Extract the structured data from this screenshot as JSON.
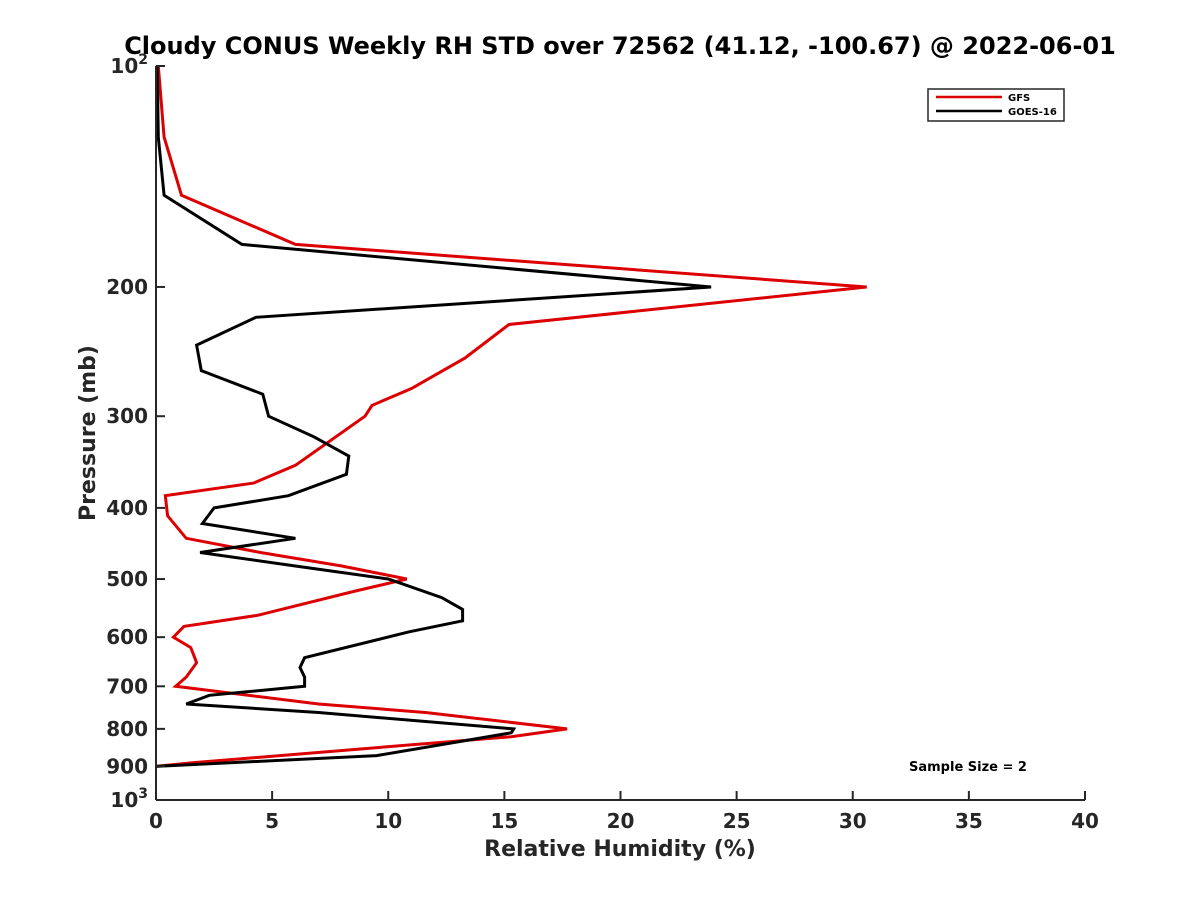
{
  "chart_data": {
    "type": "line",
    "title": "Cloudy CONUS Weekly RH STD over 72562 (41.12, -100.67) @ 2022-06-01",
    "xlabel": "Relative Humidity (%)",
    "ylabel": "Pressure (mb)",
    "xlim": [
      0,
      40
    ],
    "ylim": [
      100,
      1000
    ],
    "y_scale": "log",
    "y_reversed": true,
    "grid": false,
    "legend_position": "top-right",
    "x_ticks": [
      0,
      5,
      10,
      15,
      20,
      25,
      30,
      35,
      40
    ],
    "x_tick_labels": [
      "0",
      "5",
      "10",
      "15",
      "20",
      "25",
      "30",
      "35",
      "40"
    ],
    "y_ticks": [
      100,
      200,
      300,
      400,
      500,
      600,
      700,
      800,
      900,
      1000
    ],
    "y_tick_labels": [
      {
        "base": "10",
        "sup": "2"
      },
      {
        "base": "200",
        "sup": ""
      },
      {
        "base": "300",
        "sup": ""
      },
      {
        "base": "400",
        "sup": ""
      },
      {
        "base": "500",
        "sup": ""
      },
      {
        "base": "600",
        "sup": ""
      },
      {
        "base": "700",
        "sup": ""
      },
      {
        "base": "800",
        "sup": ""
      },
      {
        "base": "900",
        "sup": ""
      },
      {
        "base": "10",
        "sup": "3"
      }
    ],
    "annotation": "Sample Size = 2",
    "series": [
      {
        "name": "GFS",
        "color": "#dd0000",
        "points": [
          [
            0.1,
            100
          ],
          [
            0.35,
            125
          ],
          [
            1.1,
            150
          ],
          [
            6.0,
            175
          ],
          [
            30.6,
            200
          ],
          [
            15.2,
            225
          ],
          [
            13.3,
            250
          ],
          [
            11.0,
            275
          ],
          [
            9.3,
            290
          ],
          [
            9.0,
            300
          ],
          [
            6.0,
            350
          ],
          [
            4.2,
            370
          ],
          [
            0.4,
            385
          ],
          [
            0.5,
            410
          ],
          [
            1.3,
            440
          ],
          [
            4.5,
            460
          ],
          [
            8.0,
            480
          ],
          [
            10.8,
            500
          ],
          [
            8.5,
            520
          ],
          [
            4.4,
            560
          ],
          [
            1.2,
            580
          ],
          [
            0.75,
            600
          ],
          [
            1.5,
            620
          ],
          [
            1.75,
            650
          ],
          [
            1.3,
            680
          ],
          [
            0.85,
            700
          ],
          [
            7.0,
            740
          ],
          [
            11.6,
            760
          ],
          [
            17.7,
            800
          ],
          [
            15.3,
            820
          ],
          [
            9.2,
            850
          ],
          [
            1.5,
            890
          ],
          [
            0.0,
            900
          ]
        ]
      },
      {
        "name": "GOES-16",
        "color": "#000000",
        "points": [
          [
            0.05,
            100
          ],
          [
            0.1,
            125
          ],
          [
            0.35,
            150
          ],
          [
            3.7,
            175
          ],
          [
            23.9,
            200
          ],
          [
            4.3,
            220
          ],
          [
            1.75,
            240
          ],
          [
            1.95,
            260
          ],
          [
            4.6,
            280
          ],
          [
            4.85,
            300
          ],
          [
            6.8,
            320
          ],
          [
            8.3,
            340
          ],
          [
            8.2,
            360
          ],
          [
            5.7,
            385
          ],
          [
            2.5,
            400
          ],
          [
            2.0,
            420
          ],
          [
            6.0,
            440
          ],
          [
            1.9,
            460
          ],
          [
            6.0,
            480
          ],
          [
            10.0,
            500
          ],
          [
            12.3,
            530
          ],
          [
            13.2,
            550
          ],
          [
            13.2,
            570
          ],
          [
            10.9,
            590
          ],
          [
            6.4,
            640
          ],
          [
            6.2,
            660
          ],
          [
            6.4,
            680
          ],
          [
            6.4,
            700
          ],
          [
            2.3,
            720
          ],
          [
            1.3,
            740
          ],
          [
            7.0,
            760
          ],
          [
            15.4,
            800
          ],
          [
            15.3,
            810
          ],
          [
            9.5,
            870
          ],
          [
            0.0,
            900
          ]
        ]
      }
    ]
  }
}
